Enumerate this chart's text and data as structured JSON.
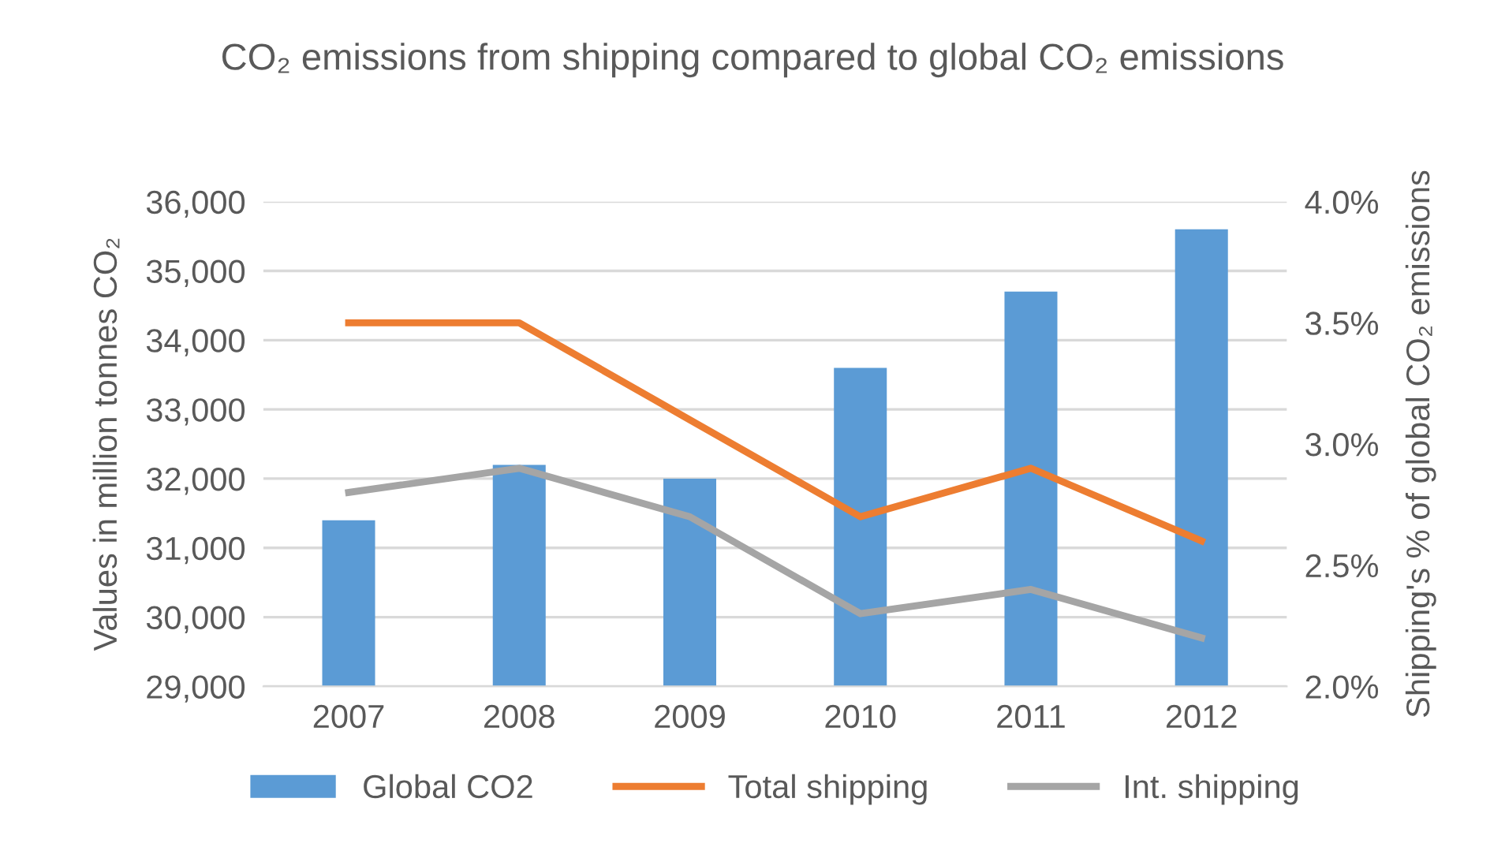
{
  "chart_data": {
    "type": "bar",
    "title": "CO₂ emissions from shipping compared to global CO₂ emissions",
    "ylabel": "Values in million tonnes CO₂",
    "y2label": "Shipping's % of global CO₂ emissions",
    "categories": [
      "2007",
      "2008",
      "2009",
      "2010",
      "2011",
      "2012"
    ],
    "series": [
      {
        "name": "Global CO2",
        "color": "#5b9bd5",
        "values": [
          31400,
          32200,
          32000,
          33600,
          34700,
          35600
        ]
      },
      {
        "name": "Total shipping",
        "type": "line",
        "axis": "y2",
        "color": "#ed7d31",
        "values": [
          3.5,
          3.5,
          3.1,
          2.7,
          2.9,
          2.6
        ]
      },
      {
        "name": "Int. shipping",
        "type": "line",
        "axis": "y2",
        "color": "#a5a5a5",
        "values": [
          2.8,
          2.9,
          2.7,
          2.3,
          2.4,
          2.2
        ]
      }
    ],
    "ylim": [
      29000,
      36000
    ],
    "yticks": [
      {
        "value": 29000,
        "label": "29,000"
      },
      {
        "value": 30000,
        "label": "30,000"
      },
      {
        "value": 31000,
        "label": "31,000"
      },
      {
        "value": 32000,
        "label": "32,000"
      },
      {
        "value": 33000,
        "label": "33,000"
      },
      {
        "value": 34000,
        "label": "34,000"
      },
      {
        "value": 35000,
        "label": "35,000"
      },
      {
        "value": 36000,
        "label": "36,000"
      }
    ],
    "y2lim": [
      2.0,
      4.0
    ],
    "y2ticks": [
      {
        "value": 2.0,
        "label": "2.0%"
      },
      {
        "value": 2.5,
        "label": "2.5%"
      },
      {
        "value": 3.0,
        "label": "3.0%"
      },
      {
        "value": 3.5,
        "label": "3.5%"
      },
      {
        "value": 4.0,
        "label": "4.0%"
      }
    ],
    "grid": "y",
    "legend": "bottom",
    "marker": "none",
    "line_style": "solid"
  }
}
